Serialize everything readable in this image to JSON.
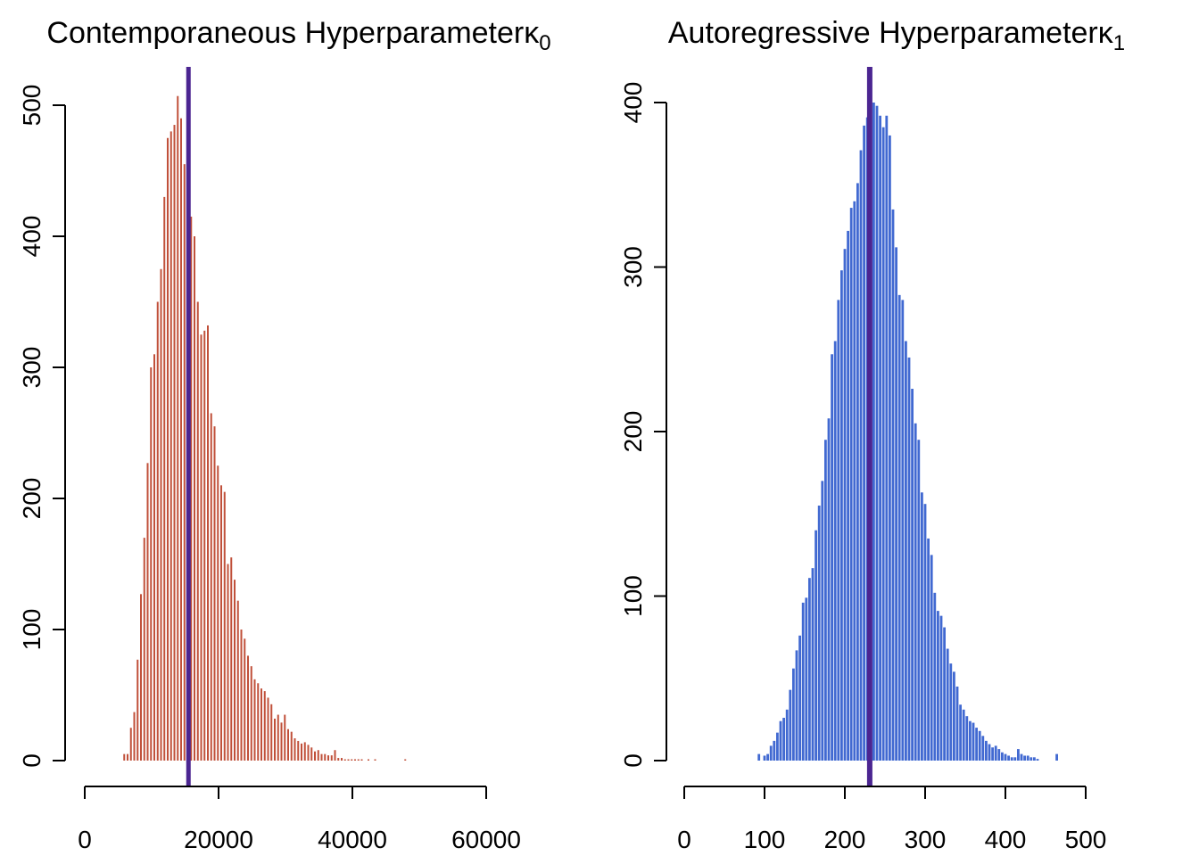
{
  "chart_data": [
    {
      "type": "histogram",
      "title": "Contemporaneous Hyperparameterκ",
      "title_subscript": "0",
      "xlabel": "",
      "ylabel": "",
      "xlim": [
        0,
        60000
      ],
      "ylim": [
        0,
        500
      ],
      "x_ticks": [
        0,
        20000,
        40000,
        60000
      ],
      "x_tick_labels": [
        "0",
        "20000",
        "40000",
        "60000"
      ],
      "y_ticks": [
        0,
        100,
        200,
        300,
        400,
        500
      ],
      "y_tick_labels": [
        "0",
        "100",
        "200",
        "300",
        "400",
        "500"
      ],
      "bar_color": "#c0503a",
      "vline": {
        "x": 15500,
        "color": "#4b2591"
      },
      "bins": [
        [
          5900,
          5
        ],
        [
          6400,
          5
        ],
        [
          6900,
          25
        ],
        [
          7400,
          37
        ],
        [
          7900,
          77
        ],
        [
          8400,
          127
        ],
        [
          8900,
          170
        ],
        [
          9400,
          227
        ],
        [
          9900,
          300
        ],
        [
          10400,
          310
        ],
        [
          10900,
          350
        ],
        [
          11400,
          375
        ],
        [
          11900,
          430
        ],
        [
          12400,
          475
        ],
        [
          12900,
          480
        ],
        [
          13400,
          485
        ],
        [
          13900,
          507
        ],
        [
          14400,
          490
        ],
        [
          14900,
          455
        ],
        [
          15400,
          445
        ],
        [
          15900,
          415
        ],
        [
          16400,
          400
        ],
        [
          16900,
          350
        ],
        [
          17400,
          325
        ],
        [
          17900,
          328
        ],
        [
          18400,
          332
        ],
        [
          18900,
          265
        ],
        [
          19400,
          255
        ],
        [
          19900,
          225
        ],
        [
          20400,
          210
        ],
        [
          20900,
          205
        ],
        [
          21400,
          150
        ],
        [
          21900,
          155
        ],
        [
          22400,
          138
        ],
        [
          22900,
          122
        ],
        [
          23400,
          100
        ],
        [
          23900,
          93
        ],
        [
          24400,
          80
        ],
        [
          24900,
          72
        ],
        [
          25400,
          62
        ],
        [
          25900,
          59
        ],
        [
          26400,
          55
        ],
        [
          26900,
          53
        ],
        [
          27400,
          48
        ],
        [
          27900,
          43
        ],
        [
          28400,
          32
        ],
        [
          28900,
          35
        ],
        [
          29400,
          29
        ],
        [
          29900,
          35
        ],
        [
          30400,
          24
        ],
        [
          30900,
          22
        ],
        [
          31400,
          17
        ],
        [
          31900,
          15
        ],
        [
          32400,
          13
        ],
        [
          32900,
          14
        ],
        [
          33400,
          12
        ],
        [
          33900,
          10
        ],
        [
          34400,
          7
        ],
        [
          34900,
          8
        ],
        [
          35400,
          5
        ],
        [
          35900,
          5
        ],
        [
          36400,
          4
        ],
        [
          36900,
          4
        ],
        [
          37400,
          8
        ],
        [
          37900,
          2
        ],
        [
          38400,
          2
        ],
        [
          38900,
          1
        ],
        [
          39400,
          1
        ],
        [
          39900,
          1
        ],
        [
          40400,
          1
        ],
        [
          40900,
          1
        ],
        [
          41400,
          1
        ],
        [
          42400,
          1
        ],
        [
          43400,
          1
        ],
        [
          47900,
          1
        ]
      ]
    },
    {
      "type": "histogram",
      "title": "Autoregressive Hyperparameterκ",
      "title_subscript": "1",
      "xlabel": "",
      "ylabel": "",
      "xlim": [
        0,
        500
      ],
      "ylim": [
        0,
        400
      ],
      "x_ticks": [
        0,
        100,
        200,
        300,
        400,
        500
      ],
      "x_tick_labels": [
        "0",
        "100",
        "200",
        "300",
        "400",
        "500"
      ],
      "y_ticks": [
        0,
        100,
        200,
        300,
        400
      ],
      "y_tick_labels": [
        "0",
        "100",
        "200",
        "300",
        "400"
      ],
      "bar_color": "#4169d1",
      "vline": {
        "x": 231,
        "color": "#4b2591"
      },
      "bins": [
        [
          93,
          4
        ],
        [
          100,
          3
        ],
        [
          104,
          4
        ],
        [
          108,
          9
        ],
        [
          112,
          12
        ],
        [
          116,
          17
        ],
        [
          120,
          24
        ],
        [
          124,
          26
        ],
        [
          128,
          31
        ],
        [
          132,
          43
        ],
        [
          136,
          56
        ],
        [
          140,
          67
        ],
        [
          144,
          76
        ],
        [
          148,
          96
        ],
        [
          152,
          99
        ],
        [
          156,
          111
        ],
        [
          160,
          117
        ],
        [
          164,
          140
        ],
        [
          168,
          155
        ],
        [
          172,
          170
        ],
        [
          176,
          195
        ],
        [
          180,
          208
        ],
        [
          184,
          247
        ],
        [
          188,
          255
        ],
        [
          192,
          280
        ],
        [
          196,
          298
        ],
        [
          200,
          311
        ],
        [
          204,
          322
        ],
        [
          208,
          336
        ],
        [
          212,
          340
        ],
        [
          216,
          351
        ],
        [
          220,
          371
        ],
        [
          224,
          386
        ],
        [
          228,
          391
        ],
        [
          232,
          398
        ],
        [
          236,
          400
        ],
        [
          240,
          398
        ],
        [
          244,
          392
        ],
        [
          248,
          385
        ],
        [
          252,
          392
        ],
        [
          256,
          380
        ],
        [
          260,
          335
        ],
        [
          264,
          312
        ],
        [
          268,
          283
        ],
        [
          272,
          280
        ],
        [
          276,
          255
        ],
        [
          280,
          245
        ],
        [
          284,
          226
        ],
        [
          288,
          205
        ],
        [
          292,
          195
        ],
        [
          296,
          163
        ],
        [
          300,
          156
        ],
        [
          304,
          135
        ],
        [
          308,
          125
        ],
        [
          312,
          102
        ],
        [
          316,
          91
        ],
        [
          320,
          88
        ],
        [
          324,
          81
        ],
        [
          328,
          68
        ],
        [
          332,
          59
        ],
        [
          336,
          54
        ],
        [
          340,
          45
        ],
        [
          344,
          34
        ],
        [
          348,
          31
        ],
        [
          352,
          27
        ],
        [
          356,
          24
        ],
        [
          360,
          23
        ],
        [
          364,
          20
        ],
        [
          368,
          18
        ],
        [
          372,
          15
        ],
        [
          376,
          12
        ],
        [
          380,
          10
        ],
        [
          384,
          8
        ],
        [
          388,
          9
        ],
        [
          392,
          7
        ],
        [
          396,
          5
        ],
        [
          400,
          4
        ],
        [
          404,
          3
        ],
        [
          408,
          2
        ],
        [
          412,
          2
        ],
        [
          416,
          7
        ],
        [
          420,
          4
        ],
        [
          424,
          3
        ],
        [
          428,
          3
        ],
        [
          432,
          2
        ],
        [
          436,
          2
        ],
        [
          440,
          1
        ],
        [
          464,
          4
        ]
      ]
    }
  ]
}
